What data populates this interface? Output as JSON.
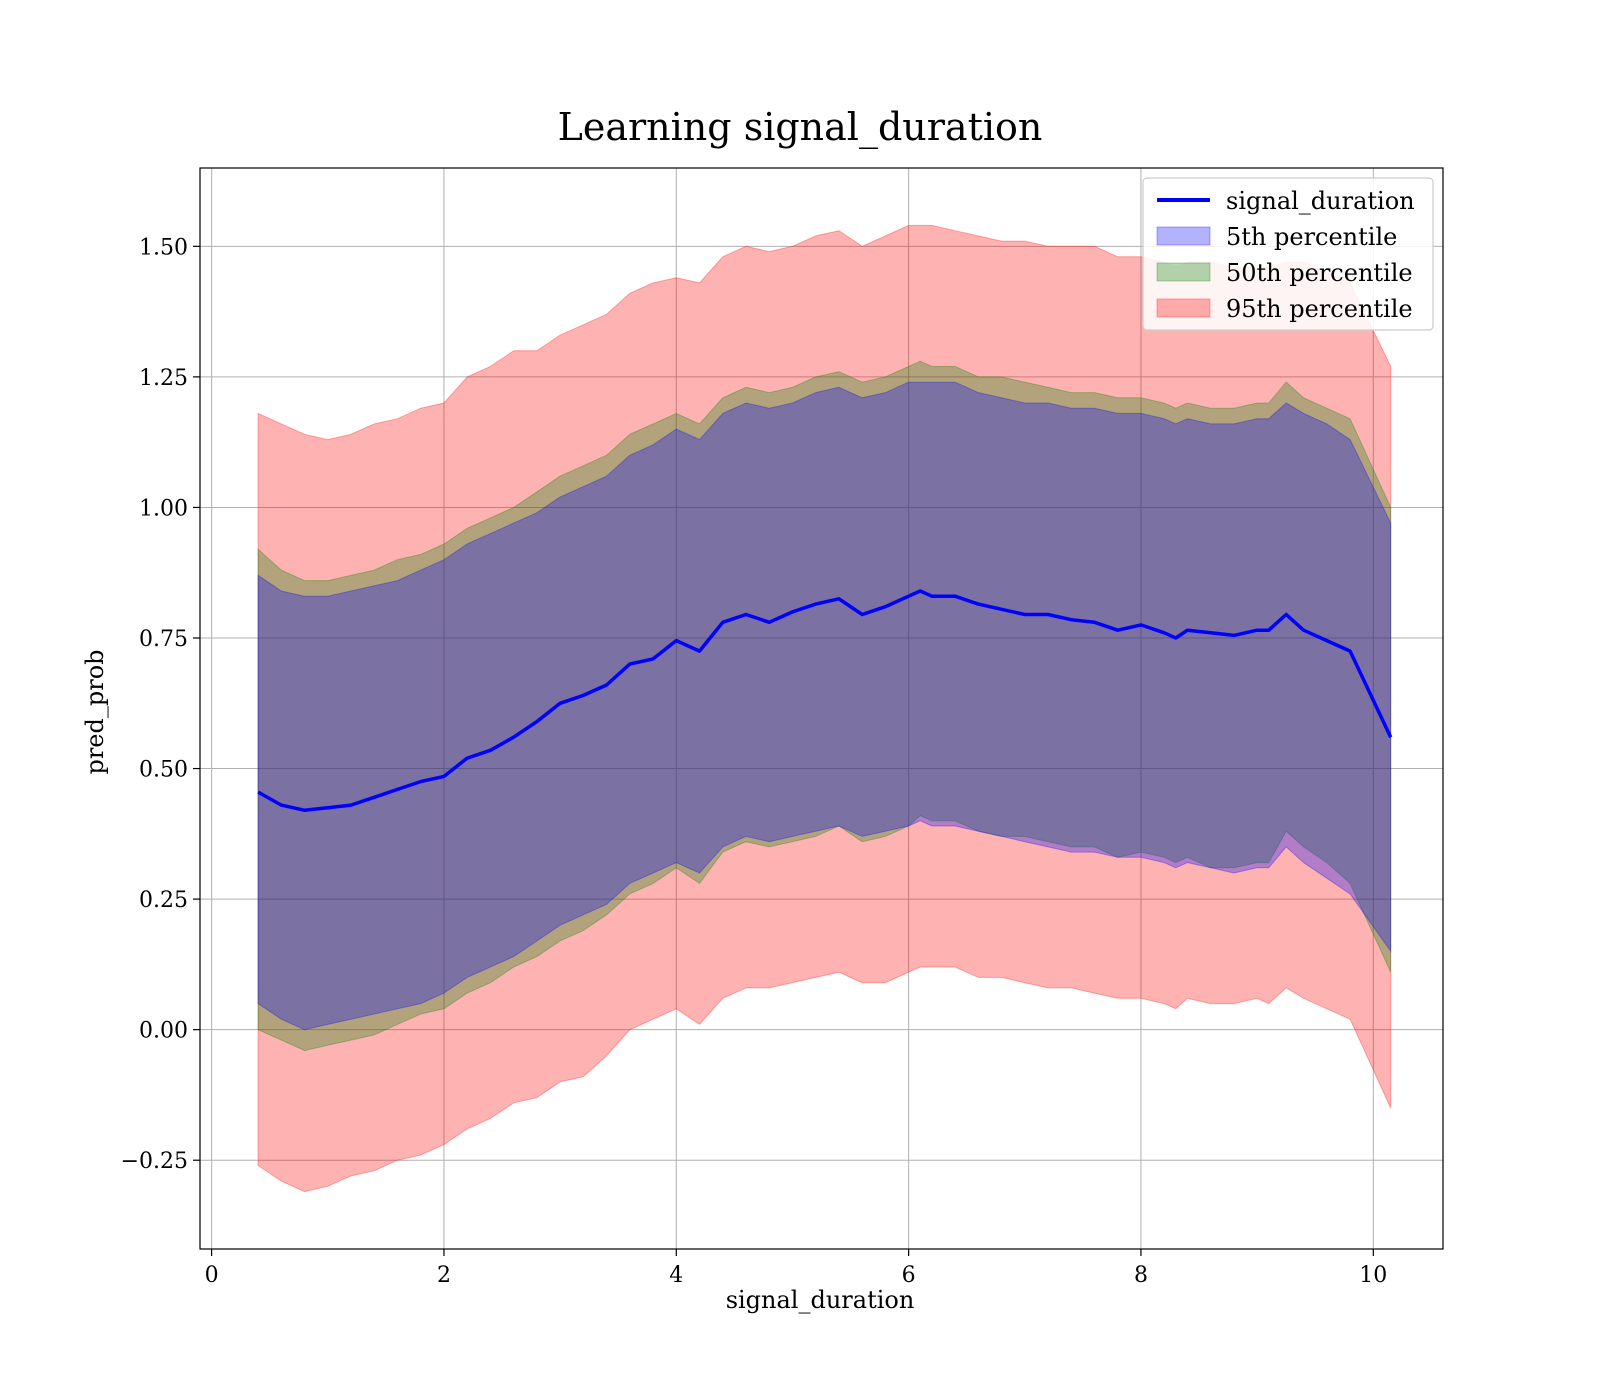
{
  "chart_data": {
    "type": "area",
    "title": "Learning signal_duration",
    "xlabel": "signal_duration",
    "ylabel": "pred_prob",
    "xlim": [
      -0.1,
      10.6
    ],
    "ylim": [
      -0.42,
      1.65
    ],
    "xticks": [
      0,
      2,
      4,
      6,
      8,
      10
    ],
    "xtick_labels": [
      "0",
      "2",
      "4",
      "6",
      "8",
      "10"
    ],
    "yticks": [
      -0.25,
      0,
      0.25,
      0.5,
      0.75,
      1.0,
      1.25,
      1.5
    ],
    "ytick_labels": [
      "−0.25",
      "0.00",
      "0.25",
      "0.50",
      "0.75",
      "1.00",
      "1.25",
      "1.50"
    ],
    "grid": true,
    "legend_position": "top-right",
    "legend": [
      "signal_duration",
      "5th percentile",
      "50th percentile",
      "95th percentile"
    ],
    "colors": {
      "line": "#0000ff",
      "band_5": "#0000ff",
      "band_50": "#008000",
      "band_95": "#ff0000"
    },
    "x": [
      0.4,
      0.6,
      0.8,
      1.0,
      1.2,
      1.4,
      1.6,
      1.8,
      2.0,
      2.2,
      2.4,
      2.6,
      2.8,
      3.0,
      3.2,
      3.4,
      3.6,
      3.8,
      4.0,
      4.2,
      4.4,
      4.6,
      4.8,
      5.0,
      5.2,
      5.4,
      5.6,
      5.8,
      6.0,
      6.1,
      6.2,
      6.4,
      6.6,
      6.8,
      7.0,
      7.2,
      7.4,
      7.6,
      7.8,
      8.0,
      8.2,
      8.3,
      8.4,
      8.6,
      8.8,
      9.0,
      9.1,
      9.25,
      9.4,
      9.6,
      9.8,
      10.15
    ],
    "mean": [
      0.455,
      0.43,
      0.42,
      0.425,
      0.43,
      0.445,
      0.46,
      0.475,
      0.485,
      0.52,
      0.535,
      0.56,
      0.59,
      0.625,
      0.64,
      0.66,
      0.7,
      0.71,
      0.745,
      0.725,
      0.78,
      0.795,
      0.78,
      0.8,
      0.815,
      0.825,
      0.795,
      0.81,
      0.83,
      0.84,
      0.83,
      0.83,
      0.815,
      0.805,
      0.795,
      0.795,
      0.785,
      0.78,
      0.765,
      0.775,
      0.76,
      0.75,
      0.765,
      0.76,
      0.755,
      0.765,
      0.765,
      0.795,
      0.765,
      0.745,
      0.725,
      0.56
    ],
    "series": [
      {
        "name": "95th percentile",
        "lower": [
          -0.26,
          -0.29,
          -0.31,
          -0.3,
          -0.28,
          -0.27,
          -0.25,
          -0.24,
          -0.22,
          -0.19,
          -0.17,
          -0.14,
          -0.13,
          -0.1,
          -0.09,
          -0.05,
          0.0,
          0.02,
          0.04,
          0.01,
          0.06,
          0.08,
          0.08,
          0.09,
          0.1,
          0.11,
          0.09,
          0.09,
          0.11,
          0.12,
          0.12,
          0.12,
          0.1,
          0.1,
          0.09,
          0.08,
          0.08,
          0.07,
          0.06,
          0.06,
          0.05,
          0.04,
          0.06,
          0.05,
          0.05,
          0.06,
          0.05,
          0.08,
          0.06,
          0.04,
          0.02,
          -0.15
        ],
        "upper": [
          1.18,
          1.16,
          1.14,
          1.13,
          1.14,
          1.16,
          1.17,
          1.19,
          1.2,
          1.25,
          1.27,
          1.3,
          1.3,
          1.33,
          1.35,
          1.37,
          1.41,
          1.43,
          1.44,
          1.43,
          1.48,
          1.5,
          1.49,
          1.5,
          1.52,
          1.53,
          1.5,
          1.52,
          1.54,
          1.54,
          1.54,
          1.53,
          1.52,
          1.51,
          1.51,
          1.5,
          1.5,
          1.5,
          1.48,
          1.48,
          1.47,
          1.46,
          1.47,
          1.47,
          1.46,
          1.46,
          1.46,
          1.47,
          1.47,
          1.45,
          1.43,
          1.27
        ]
      },
      {
        "name": "50th percentile",
        "lower": [
          0.0,
          -0.02,
          -0.04,
          -0.03,
          -0.02,
          -0.01,
          0.01,
          0.03,
          0.04,
          0.07,
          0.09,
          0.12,
          0.14,
          0.17,
          0.19,
          0.22,
          0.26,
          0.28,
          0.31,
          0.28,
          0.34,
          0.36,
          0.35,
          0.36,
          0.37,
          0.39,
          0.36,
          0.37,
          0.39,
          0.41,
          0.4,
          0.4,
          0.38,
          0.37,
          0.37,
          0.36,
          0.35,
          0.35,
          0.33,
          0.34,
          0.33,
          0.32,
          0.33,
          0.31,
          0.31,
          0.32,
          0.32,
          0.38,
          0.35,
          0.32,
          0.28,
          0.11
        ],
        "upper": [
          0.92,
          0.88,
          0.86,
          0.86,
          0.87,
          0.88,
          0.9,
          0.91,
          0.93,
          0.96,
          0.98,
          1.0,
          1.03,
          1.06,
          1.08,
          1.1,
          1.14,
          1.16,
          1.18,
          1.16,
          1.21,
          1.23,
          1.22,
          1.23,
          1.25,
          1.26,
          1.24,
          1.25,
          1.27,
          1.28,
          1.27,
          1.27,
          1.25,
          1.25,
          1.24,
          1.23,
          1.22,
          1.22,
          1.21,
          1.21,
          1.2,
          1.19,
          1.2,
          1.19,
          1.19,
          1.2,
          1.2,
          1.24,
          1.21,
          1.19,
          1.17,
          1.0
        ]
      },
      {
        "name": "5th percentile",
        "lower": [
          0.05,
          0.02,
          0.0,
          0.01,
          0.02,
          0.03,
          0.04,
          0.05,
          0.07,
          0.1,
          0.12,
          0.14,
          0.17,
          0.2,
          0.22,
          0.24,
          0.28,
          0.3,
          0.32,
          0.3,
          0.35,
          0.37,
          0.36,
          0.37,
          0.38,
          0.39,
          0.37,
          0.38,
          0.39,
          0.4,
          0.39,
          0.39,
          0.38,
          0.37,
          0.36,
          0.35,
          0.34,
          0.34,
          0.33,
          0.33,
          0.32,
          0.31,
          0.32,
          0.31,
          0.3,
          0.31,
          0.31,
          0.35,
          0.32,
          0.29,
          0.26,
          0.15
        ],
        "upper": [
          0.87,
          0.84,
          0.83,
          0.83,
          0.84,
          0.85,
          0.86,
          0.88,
          0.9,
          0.93,
          0.95,
          0.97,
          0.99,
          1.02,
          1.04,
          1.06,
          1.1,
          1.12,
          1.15,
          1.13,
          1.18,
          1.2,
          1.19,
          1.2,
          1.22,
          1.23,
          1.21,
          1.22,
          1.24,
          1.24,
          1.24,
          1.24,
          1.22,
          1.21,
          1.2,
          1.2,
          1.19,
          1.19,
          1.18,
          1.18,
          1.17,
          1.16,
          1.17,
          1.16,
          1.16,
          1.17,
          1.17,
          1.2,
          1.18,
          1.16,
          1.13,
          0.97
        ]
      }
    ]
  }
}
